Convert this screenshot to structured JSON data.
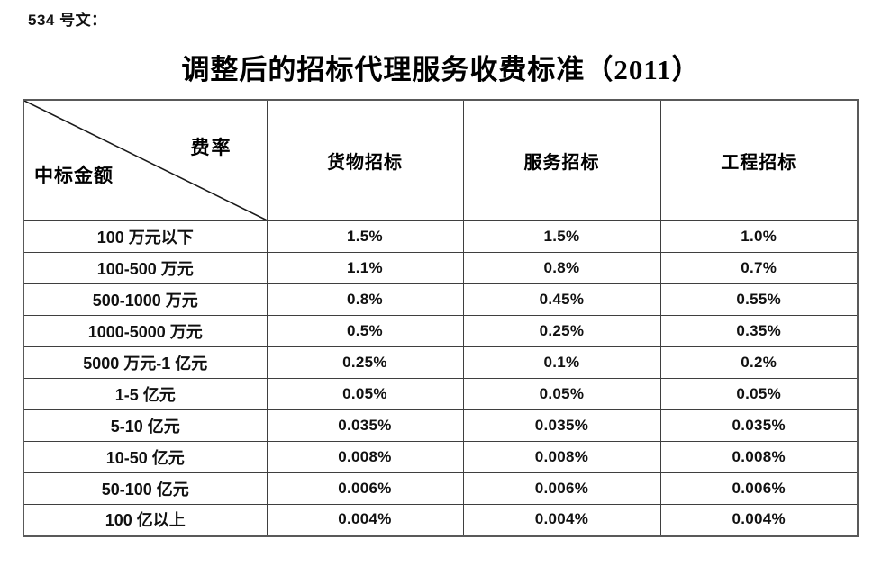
{
  "page": {
    "doc_label": "534 号文：",
    "title": "调整后的招标代理服务收费标准（2011）"
  },
  "table": {
    "corner": {
      "top_right": "费率",
      "bottom_left": "中标金额"
    },
    "columns": [
      "货物招标",
      "服务招标",
      "工程招标"
    ],
    "rows": [
      {
        "label": "100 万元以下",
        "values": [
          "1.5%",
          "1.5%",
          "1.0%"
        ]
      },
      {
        "label": "100-500 万元",
        "values": [
          "1.1%",
          "0.8%",
          "0.7%"
        ]
      },
      {
        "label": "500-1000 万元",
        "values": [
          "0.8%",
          "0.45%",
          "0.55%"
        ]
      },
      {
        "label": "1000-5000 万元",
        "values": [
          "0.5%",
          "0.25%",
          "0.35%"
        ]
      },
      {
        "label": "5000 万元-1 亿元",
        "values": [
          "0.25%",
          "0.1%",
          "0.2%"
        ]
      },
      {
        "label": "1-5 亿元",
        "values": [
          "0.05%",
          "0.05%",
          "0.05%"
        ]
      },
      {
        "label": "5-10 亿元",
        "values": [
          "0.035%",
          "0.035%",
          "0.035%"
        ]
      },
      {
        "label": "10-50 亿元",
        "values": [
          "0.008%",
          "0.008%",
          "0.008%"
        ]
      },
      {
        "label": "50-100 亿元",
        "values": [
          "0.006%",
          "0.006%",
          "0.006%"
        ]
      },
      {
        "label": "100 亿以上",
        "values": [
          "0.004%",
          "0.004%",
          "0.004%"
        ]
      }
    ],
    "colors": {
      "text": "#111111",
      "border_inner": "#3f3f3f",
      "border_outer": "#595959",
      "background": "#ffffff"
    }
  }
}
